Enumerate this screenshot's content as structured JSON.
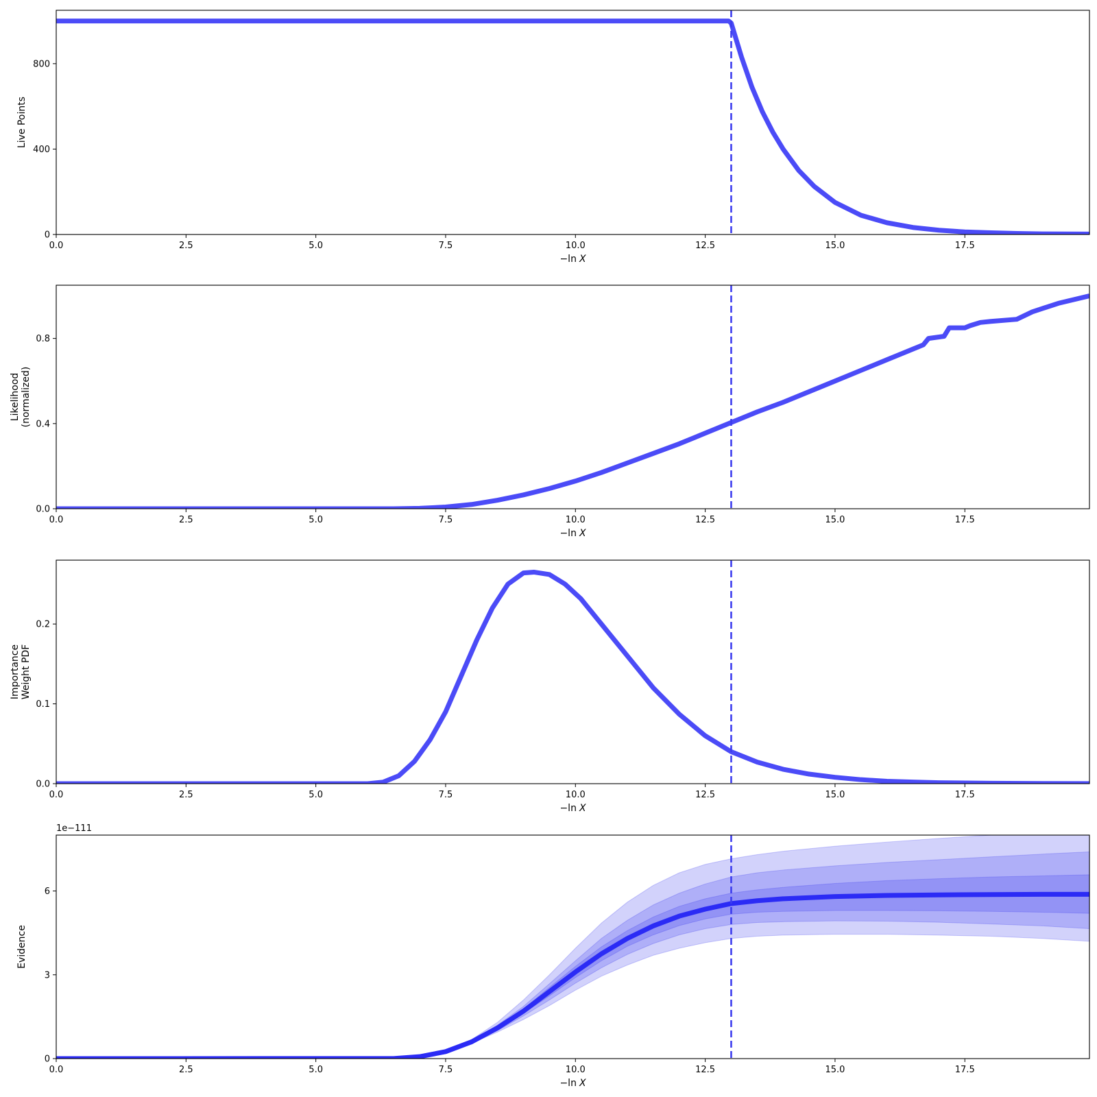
{
  "chart_data": [
    {
      "type": "line",
      "ylabel": [
        "Live Points"
      ],
      "xlabel": [
        "−ln",
        "X"
      ],
      "xlim": [
        0,
        19.9
      ],
      "ylim": [
        0,
        1050
      ],
      "xticks": [
        0,
        2.5,
        5,
        7.5,
        10,
        12.5,
        15,
        17.5
      ],
      "xtick_labels": [
        "0.0",
        "2.5",
        "5.0",
        "7.5",
        "10.0",
        "12.5",
        "15.0",
        "17.5"
      ],
      "yticks": [
        0,
        400,
        800
      ],
      "ytick_labels": [
        "0",
        "400",
        "800"
      ],
      "vline_x": 13.0,
      "series": [
        {
          "x": [
            0,
            12.95,
            13.0,
            13.2,
            13.4,
            13.6,
            13.8,
            14.0,
            14.3,
            14.6,
            15.0,
            15.5,
            16.0,
            16.5,
            17.0,
            17.5,
            18.0,
            18.5,
            19.0,
            19.9
          ],
          "y": [
            1000,
            1000,
            990,
            830,
            690,
            575,
            480,
            400,
            300,
            225,
            150,
            90,
            55,
            33,
            20,
            12,
            8,
            5,
            3,
            2
          ]
        }
      ],
      "bands": []
    },
    {
      "type": "line",
      "ylabel": [
        "Likelihood",
        "(normalized)"
      ],
      "xlabel": [
        "−ln",
        "X"
      ],
      "xlim": [
        0,
        19.9
      ],
      "ylim": [
        0,
        1.05
      ],
      "xticks": [
        0,
        2.5,
        5,
        7.5,
        10,
        12.5,
        15,
        17.5
      ],
      "xtick_labels": [
        "0.0",
        "2.5",
        "5.0",
        "7.5",
        "10.0",
        "12.5",
        "15.0",
        "17.5"
      ],
      "yticks": [
        0,
        0.4,
        0.8
      ],
      "ytick_labels": [
        "0.0",
        "0.4",
        "0.8"
      ],
      "vline_x": 13.0,
      "series": [
        {
          "x": [
            0,
            6.5,
            7.0,
            7.5,
            8.0,
            8.5,
            9.0,
            9.5,
            10.0,
            10.5,
            11.0,
            11.5,
            12.0,
            12.5,
            13.0,
            13.5,
            14.0,
            14.5,
            15.0,
            15.5,
            16.0,
            16.5,
            16.7,
            16.8,
            17.1,
            17.2,
            17.5,
            17.6,
            17.8,
            18.0,
            18.5,
            18.8,
            19.3,
            19.9
          ],
          "y": [
            0,
            0,
            0.002,
            0.008,
            0.02,
            0.04,
            0.065,
            0.095,
            0.13,
            0.17,
            0.215,
            0.26,
            0.305,
            0.355,
            0.405,
            0.455,
            0.5,
            0.55,
            0.6,
            0.65,
            0.7,
            0.75,
            0.77,
            0.8,
            0.81,
            0.85,
            0.85,
            0.86,
            0.875,
            0.88,
            0.89,
            0.925,
            0.965,
            1.0
          ]
        }
      ],
      "bands": []
    },
    {
      "type": "line",
      "ylabel": [
        "Importance",
        "Weight PDF"
      ],
      "xlabel": [
        "−ln",
        "X"
      ],
      "xlim": [
        0,
        19.9
      ],
      "ylim": [
        0,
        0.28
      ],
      "xticks": [
        0,
        2.5,
        5,
        7.5,
        10,
        12.5,
        15,
        17.5
      ],
      "xtick_labels": [
        "0.0",
        "2.5",
        "5.0",
        "7.5",
        "10.0",
        "12.5",
        "15.0",
        "17.5"
      ],
      "yticks": [
        0,
        0.1,
        0.2
      ],
      "ytick_labels": [
        "0.0",
        "0.1",
        "0.2"
      ],
      "vline_x": 13.0,
      "series": [
        {
          "x": [
            0,
            6.0,
            6.3,
            6.6,
            6.9,
            7.2,
            7.5,
            7.8,
            8.1,
            8.4,
            8.7,
            9.0,
            9.2,
            9.5,
            9.8,
            10.1,
            10.5,
            11.0,
            11.5,
            12.0,
            12.5,
            13.0,
            13.5,
            14.0,
            14.5,
            15.0,
            15.5,
            16.0,
            16.5,
            17.0,
            18.0,
            19.0,
            19.9
          ],
          "y": [
            0,
            0,
            0.002,
            0.01,
            0.028,
            0.055,
            0.09,
            0.135,
            0.18,
            0.22,
            0.25,
            0.264,
            0.265,
            0.262,
            0.25,
            0.232,
            0.2,
            0.16,
            0.12,
            0.087,
            0.06,
            0.04,
            0.027,
            0.018,
            0.012,
            0.008,
            0.005,
            0.003,
            0.002,
            0.0012,
            0.0005,
            0.0002,
            0.0001
          ]
        }
      ],
      "bands": []
    },
    {
      "type": "area",
      "ylabel": [
        "Evidence"
      ],
      "xlabel": [
        "−ln",
        "X"
      ],
      "offset_label": "1e−111",
      "xlim": [
        0,
        19.9
      ],
      "ylim": [
        0,
        8.0
      ],
      "xticks": [
        0,
        2.5,
        5,
        7.5,
        10,
        12.5,
        15,
        17.5
      ],
      "xtick_labels": [
        "0.0",
        "2.5",
        "5.0",
        "7.5",
        "10.0",
        "12.5",
        "15.0",
        "17.5"
      ],
      "yticks": [
        0,
        3,
        6
      ],
      "ytick_labels": [
        "0",
        "3",
        "6"
      ],
      "vline_x": 13.0,
      "x": [
        0,
        6.5,
        7.0,
        7.5,
        8.0,
        8.5,
        9.0,
        9.5,
        10.0,
        10.5,
        11.0,
        11.5,
        12.0,
        12.5,
        13.0,
        13.5,
        14.0,
        15.0,
        16.0,
        17.0,
        18.0,
        19.0,
        19.9
      ],
      "series": [
        {
          "y": [
            0,
            0.003,
            0.07,
            0.25,
            0.6,
            1.1,
            1.7,
            2.4,
            3.1,
            3.75,
            4.3,
            4.75,
            5.1,
            5.35,
            5.55,
            5.65,
            5.72,
            5.8,
            5.84,
            5.86,
            5.87,
            5.88,
            5.88
          ]
        }
      ],
      "bands": [
        {
          "lower": [
            0,
            0.003,
            0.06,
            0.22,
            0.55,
            0.95,
            1.4,
            1.9,
            2.45,
            2.95,
            3.35,
            3.7,
            3.95,
            4.15,
            4.3,
            4.38,
            4.42,
            4.45,
            4.45,
            4.42,
            4.38,
            4.3,
            4.2
          ],
          "upper": [
            0,
            0.003,
            0.08,
            0.28,
            0.68,
            1.3,
            2.1,
            3.0,
            3.95,
            4.85,
            5.6,
            6.2,
            6.65,
            6.95,
            7.15,
            7.3,
            7.42,
            7.6,
            7.75,
            7.88,
            8.0,
            8.15,
            8.3
          ]
        },
        {
          "lower": [
            0,
            0.003,
            0.065,
            0.23,
            0.57,
            1.0,
            1.53,
            2.1,
            2.7,
            3.25,
            3.73,
            4.12,
            4.43,
            4.65,
            4.8,
            4.87,
            4.9,
            4.93,
            4.92,
            4.88,
            4.82,
            4.75,
            4.65
          ],
          "upper": [
            0,
            0.003,
            0.075,
            0.27,
            0.64,
            1.2,
            1.87,
            2.68,
            3.5,
            4.3,
            4.95,
            5.5,
            5.92,
            6.25,
            6.5,
            6.65,
            6.75,
            6.9,
            7.02,
            7.12,
            7.22,
            7.32,
            7.4
          ]
        },
        {
          "lower": [
            0,
            0.003,
            0.068,
            0.24,
            0.58,
            1.05,
            1.62,
            2.25,
            2.9,
            3.5,
            4.02,
            4.43,
            4.76,
            5.0,
            5.17,
            5.24,
            5.27,
            5.3,
            5.3,
            5.29,
            5.27,
            5.24,
            5.2
          ],
          "upper": [
            0,
            0.003,
            0.072,
            0.26,
            0.62,
            1.15,
            1.78,
            2.55,
            3.3,
            4.0,
            4.58,
            5.07,
            5.45,
            5.72,
            5.92,
            6.04,
            6.13,
            6.27,
            6.37,
            6.44,
            6.5,
            6.54,
            6.58
          ]
        }
      ]
    }
  ]
}
